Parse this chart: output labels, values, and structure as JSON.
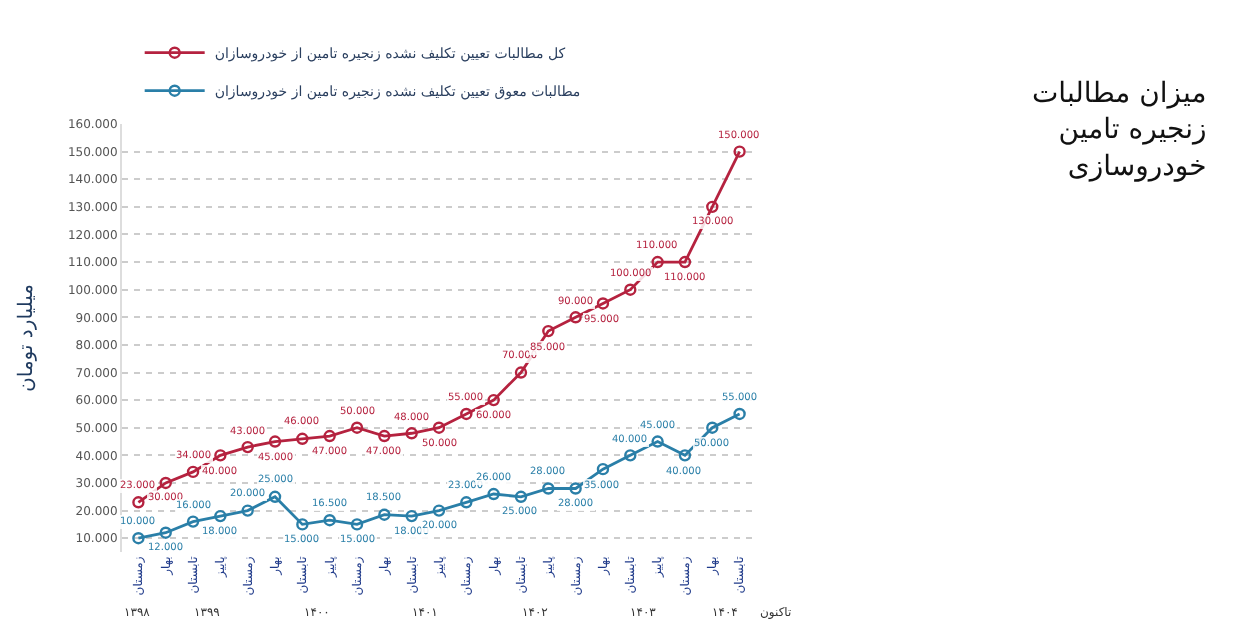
{
  "chart_data": {
    "type": "line",
    "title": "میزان مطالبات زنجیره تامین خودروسازی",
    "ylabel": "میلیارد تومان",
    "categories": [
      "زمستان",
      "بهار",
      "تابستان",
      "پاییز",
      "زمستان",
      "بهار",
      "تابستان",
      "پاییز",
      "زمستان",
      "بهار",
      "تابستان",
      "پاییز",
      "زمستان",
      "بهار",
      "تابستان",
      "پاییز",
      "زمستان",
      "بهار",
      "تابستان",
      "پاییز",
      "زمستان",
      "بهار",
      "تابستان"
    ],
    "annotations": [
      "۱۳۹۸",
      "۱۳۹۹",
      "۱۴۰۰",
      "۱۴۰۱",
      "۱۴۰۲",
      "۱۴۰۳",
      "۱۴۰۴",
      "تاکنون"
    ],
    "series": [
      {
        "name": "کل مطالبات تعیین تکلیف نشده زنجیره تامین از خودروسازان",
        "color": "#b5223f",
        "values": [
          23000,
          30000,
          34000,
          40000,
          43000,
          45000,
          46000,
          47000,
          50000,
          47000,
          48000,
          50000,
          55000,
          60000,
          70000,
          85000,
          90000,
          95000,
          100000,
          110000,
          110000,
          130000,
          150000
        ],
        "value_labels": [
          "23.000",
          "30.000",
          "34.000",
          "40.000",
          "43.000",
          "45.000",
          "46.000",
          "47.000",
          "50.000",
          "47.000",
          "48.000",
          "50.000",
          "55.000",
          "60.000",
          "70.000",
          "85.000",
          "90.000",
          "95.000",
          "100.000",
          "110.000",
          "110.000",
          "130.000",
          "150.000"
        ]
      },
      {
        "name": "مطالبات معوق تعیین تکلیف نشده زنجیره تامین از خودروسازان",
        "color": "#2a7fa8",
        "values": [
          10000,
          12000,
          16000,
          18000,
          20000,
          25000,
          15000,
          16500,
          15000,
          18500,
          18000,
          20000,
          23000,
          26000,
          25000,
          28000,
          28000,
          35000,
          40000,
          45000,
          40000,
          50000,
          55000
        ],
        "value_labels": [
          "10.000",
          "12.000",
          "16.000",
          "18.000",
          "20.000",
          "25.000",
          "15.000",
          "16.500",
          "15.000",
          "18.500",
          "18.000",
          "20.000",
          "23.000",
          "26.000",
          "25.000",
          "28.000",
          "28.000",
          "35.000",
          "40.000",
          "45.000",
          "40.000",
          "50.000",
          "55.000"
        ]
      }
    ],
    "ylim": [
      5000,
      160000
    ],
    "yticks": [
      {
        "value": 10000,
        "label": "10.000"
      },
      {
        "value": 20000,
        "label": "20.000"
      },
      {
        "value": 30000,
        "label": "30.000"
      },
      {
        "value": 40000,
        "label": "40.000"
      },
      {
        "value": 50000,
        "label": "50.000"
      },
      {
        "value": 60000,
        "label": "60.000"
      },
      {
        "value": 70000,
        "label": "70.000"
      },
      {
        "value": 80000,
        "label": "80.000"
      },
      {
        "value": 90000,
        "label": "90.000"
      },
      {
        "value": 100000,
        "label": "100.000"
      },
      {
        "value": 110000,
        "label": "110.000"
      },
      {
        "value": 120000,
        "label": "120.000"
      },
      {
        "value": 130000,
        "label": "130.000"
      },
      {
        "value": 140000,
        "label": "140.000"
      },
      {
        "value": 150000,
        "label": "150.000"
      },
      {
        "value": 160000,
        "label": "160.000"
      }
    ],
    "grid": "y",
    "legend": "top left",
    "marker": "circle",
    "line_style": "solid"
  }
}
